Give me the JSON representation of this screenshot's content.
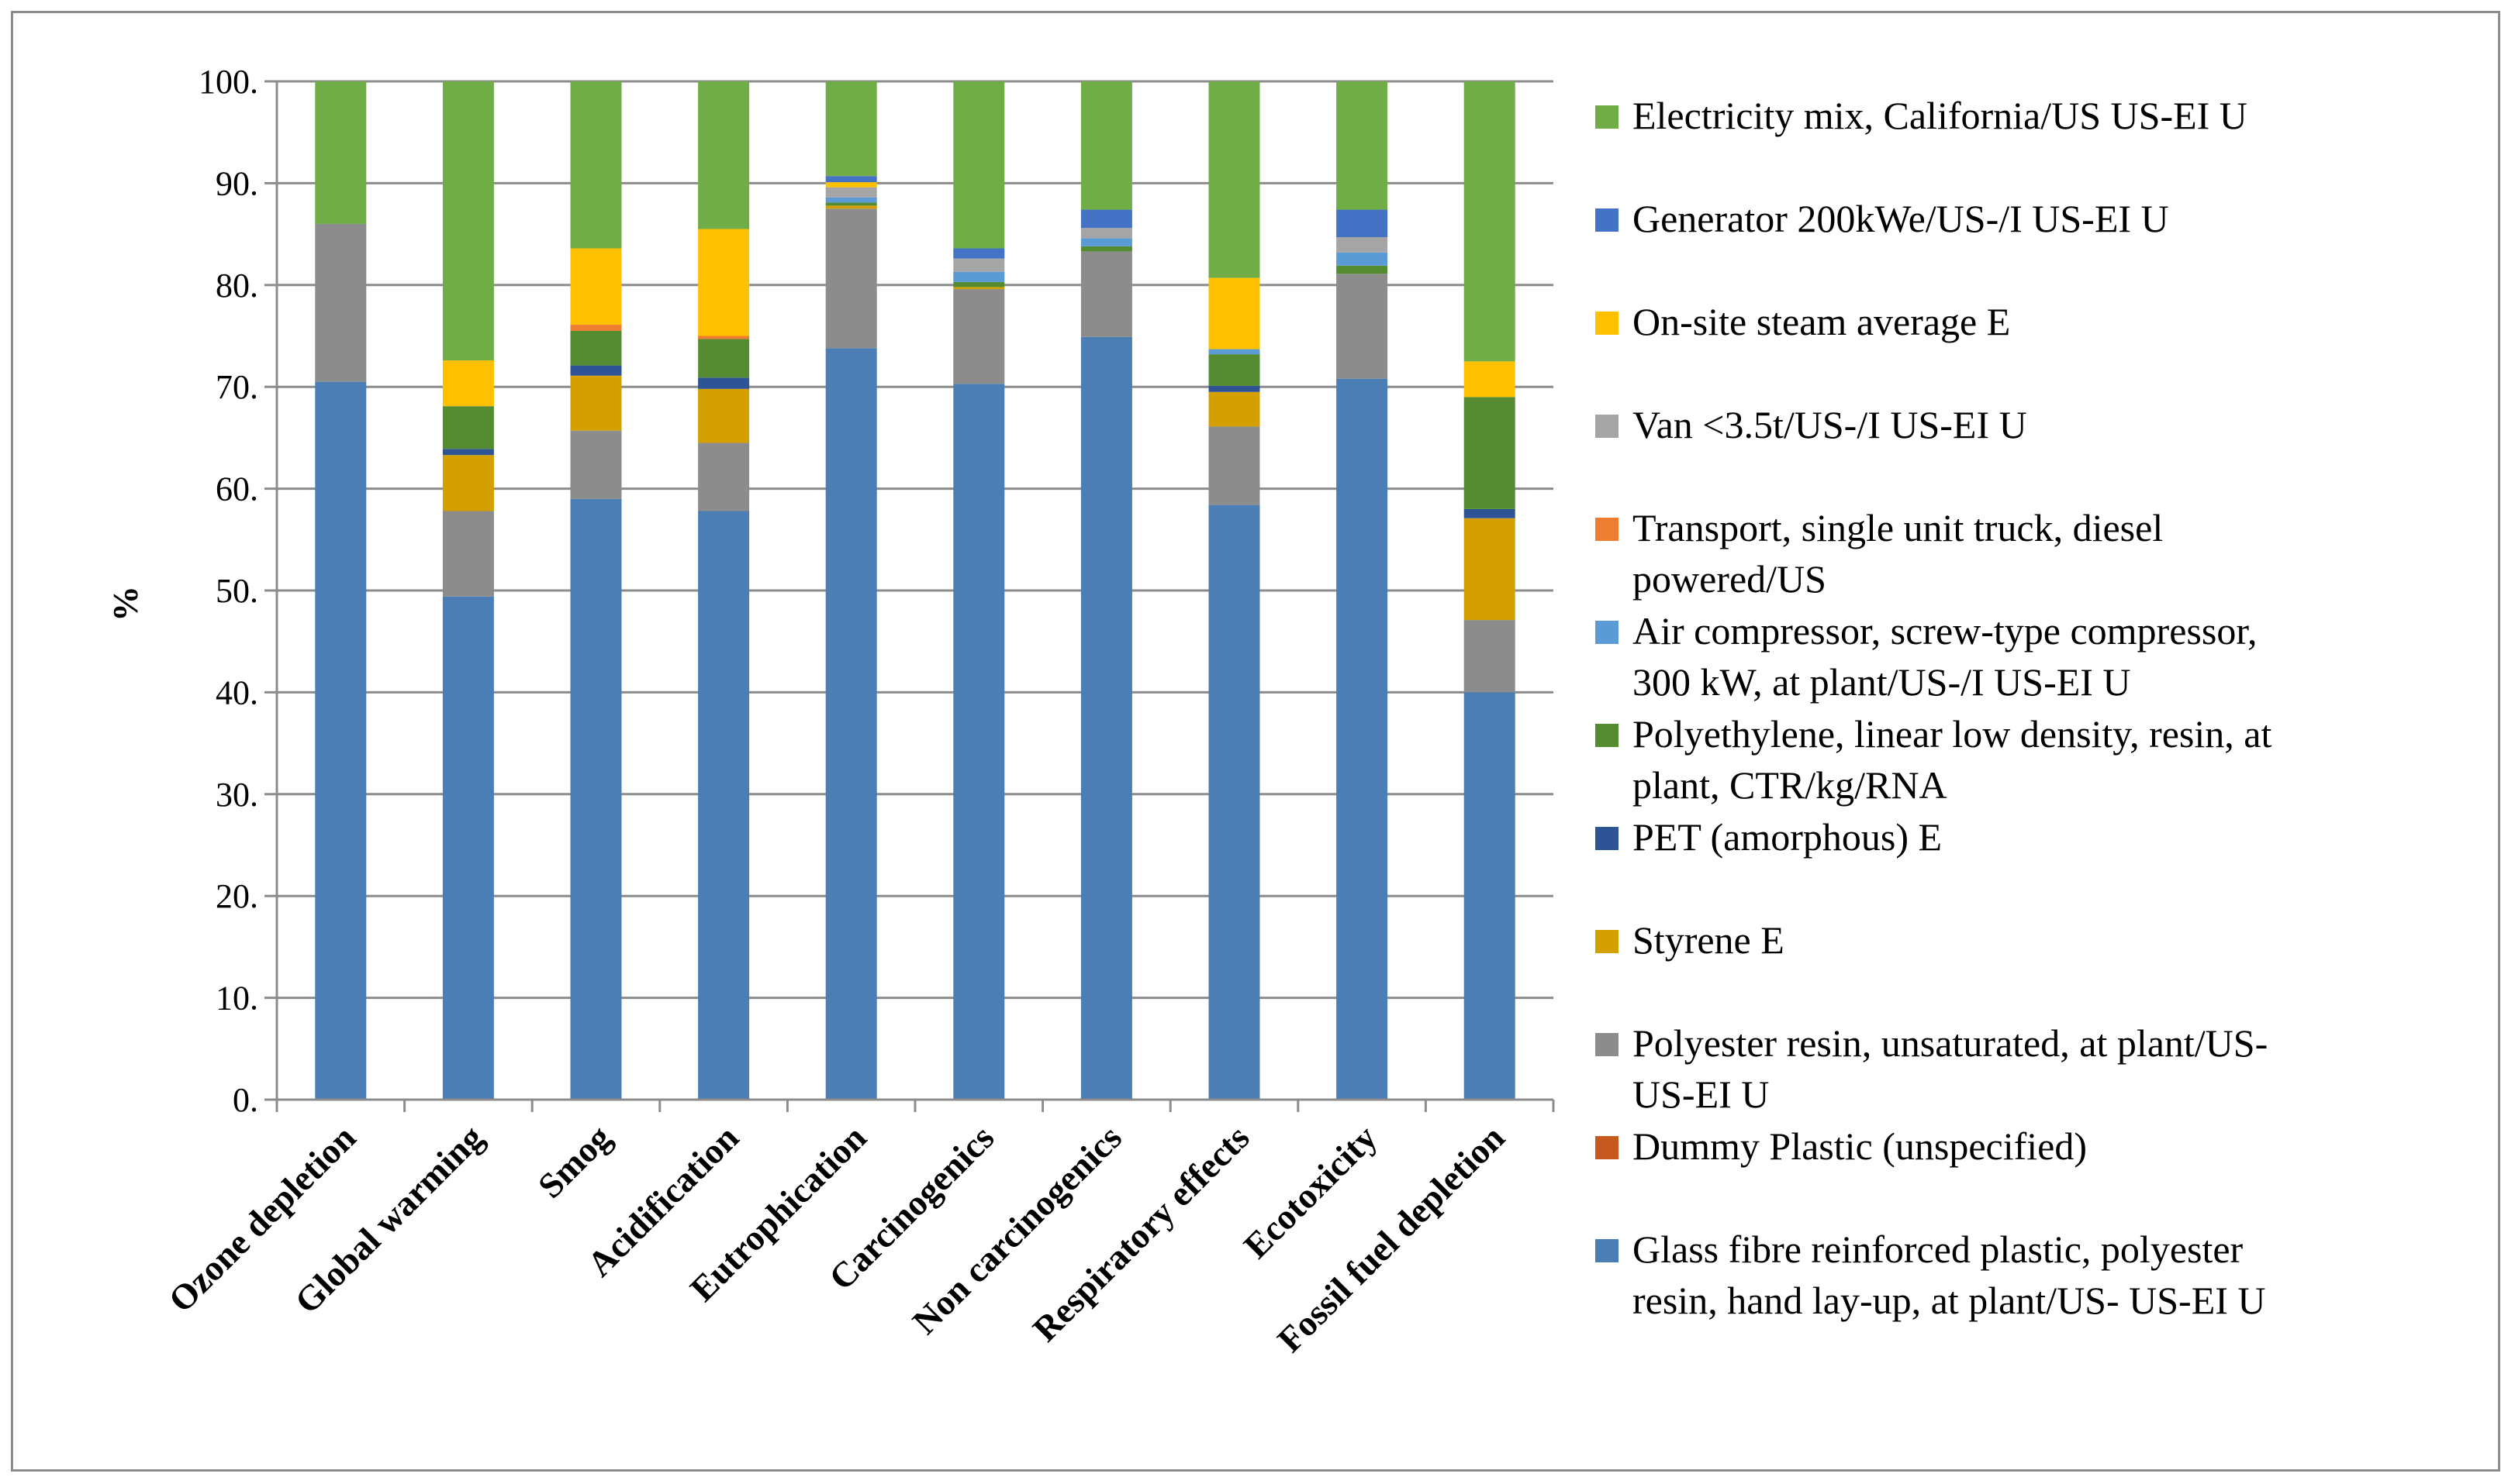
{
  "chart_data": {
    "type": "bar",
    "stacked": true,
    "ylabel": "%",
    "xlabel": "",
    "ylim": [
      0,
      100
    ],
    "yticks": [
      "0.",
      "10.",
      "20.",
      "30.",
      "40.",
      "50.",
      "60.",
      "70.",
      "80.",
      "90.",
      "100."
    ],
    "grid": true,
    "legend_position": "right",
    "categories": [
      "Ozone depletion",
      "Global warming",
      "Smog",
      "Acidification",
      "Eutrophication",
      "Carcinogenics",
      "Non carcinogenics",
      "Respiratory effects",
      "Ecotoxicity",
      "Fossil fuel depletion"
    ],
    "series": [
      {
        "name": "Glass fibre reinforced plastic, polyester resin, hand lay-up, at plant/US- US-EI U",
        "color": "#4a7eb4",
        "values": [
          70.5,
          49.4,
          59.0,
          57.8,
          73.8,
          70.3,
          74.9,
          58.4,
          70.8,
          40.0
        ]
      },
      {
        "name": "Dummy Plastic (unspecified)",
        "color": "#c65a1e",
        "values": [
          0.0,
          0.0,
          0.0,
          0.0,
          0.0,
          0.0,
          0.0,
          0.0,
          0.0,
          0.0
        ]
      },
      {
        "name": "Polyester resin, unsaturated, at plant/US- US-EI U",
        "color": "#8c8c8c",
        "values": [
          15.5,
          8.4,
          6.7,
          6.7,
          13.7,
          9.3,
          8.4,
          7.7,
          10.3,
          7.1
        ]
      },
      {
        "name": "Styrene E",
        "color": "#d4a000",
        "values": [
          0.0,
          5.5,
          5.4,
          5.3,
          0.3,
          0.2,
          0.0,
          3.4,
          0.0,
          10.0
        ]
      },
      {
        "name": "PET (amorphous) E",
        "color": "#2e5496",
        "values": [
          0.0,
          0.6,
          1.0,
          1.1,
          0.0,
          0.0,
          0.0,
          0.6,
          0.0,
          0.9
        ]
      },
      {
        "name": "Polyethylene, linear low density, resin, at plant, CTR/kg/RNA",
        "color": "#558c32",
        "values": [
          0.0,
          4.2,
          3.4,
          3.8,
          0.3,
          0.5,
          0.5,
          3.1,
          0.8,
          11.0
        ]
      },
      {
        "name": "Air compressor, screw-type compressor, 300 kW, at plant/US-/I US-EI U",
        "color": "#5b9bd5",
        "values": [
          0.0,
          0.0,
          0.0,
          0.0,
          0.5,
          1.0,
          0.8,
          0.5,
          1.3,
          0.0
        ]
      },
      {
        "name": "Transport, single unit truck, diesel powered/US",
        "color": "#ed7d31",
        "values": [
          0.0,
          0.0,
          0.6,
          0.3,
          0.0,
          0.0,
          0.0,
          0.0,
          0.0,
          0.0
        ]
      },
      {
        "name": "Van <3.5t/US-/I US-EI U",
        "color": "#a5a5a5",
        "values": [
          0.0,
          0.0,
          0.0,
          0.0,
          1.0,
          1.3,
          1.0,
          0.0,
          1.5,
          0.0
        ]
      },
      {
        "name": "On-site steam average E",
        "color": "#ffc000",
        "values": [
          0.0,
          4.5,
          7.5,
          10.5,
          0.5,
          0.0,
          0.0,
          7.0,
          0.0,
          3.5
        ]
      },
      {
        "name": "Generator 200kWe/US-/I US-EI U",
        "color": "#4472c4",
        "values": [
          0.0,
          0.0,
          0.0,
          0.0,
          0.6,
          1.0,
          1.8,
          0.0,
          2.7,
          0.0
        ]
      },
      {
        "name": "Electricity mix, California/US US-EI U",
        "color": "#70ad47",
        "values": [
          14.0,
          27.4,
          16.4,
          14.5,
          9.3,
          16.4,
          12.6,
          19.3,
          12.6,
          27.5
        ]
      }
    ],
    "legend": [
      {
        "label_lines": [
          "Electricity mix, California/US US-EI U"
        ],
        "color": "#70ad47"
      },
      {
        "label_lines": [
          "Generator 200kWe/US-/I US-EI U"
        ],
        "color": "#4472c4"
      },
      {
        "label_lines": [
          "On-site steam average E"
        ],
        "color": "#ffc000"
      },
      {
        "label_lines": [
          "Van <3.5t/US-/I US-EI U"
        ],
        "color": "#a5a5a5"
      },
      {
        "label_lines": [
          "Transport, single unit truck, diesel",
          "powered/US"
        ],
        "color": "#ed7d31"
      },
      {
        "label_lines": [
          "Air compressor, screw-type compressor,",
          "300 kW, at plant/US-/I US-EI U"
        ],
        "color": "#5b9bd5"
      },
      {
        "label_lines": [
          "Polyethylene, linear low density, resin, at",
          "plant, CTR/kg/RNA"
        ],
        "color": "#558c32"
      },
      {
        "label_lines": [
          "PET (amorphous) E"
        ],
        "color": "#2e5496"
      },
      {
        "label_lines": [
          "Styrene E"
        ],
        "color": "#d4a000"
      },
      {
        "label_lines": [
          "Polyester resin, unsaturated, at plant/US-",
          "US-EI U"
        ],
        "color": "#8c8c8c"
      },
      {
        "label_lines": [
          "Dummy Plastic (unspecified)"
        ],
        "color": "#c65a1e"
      },
      {
        "label_lines": [
          "Glass fibre reinforced plastic, polyester",
          "resin, hand lay-up, at plant/US- US-EI U"
        ],
        "color": "#4a7eb4"
      }
    ]
  }
}
